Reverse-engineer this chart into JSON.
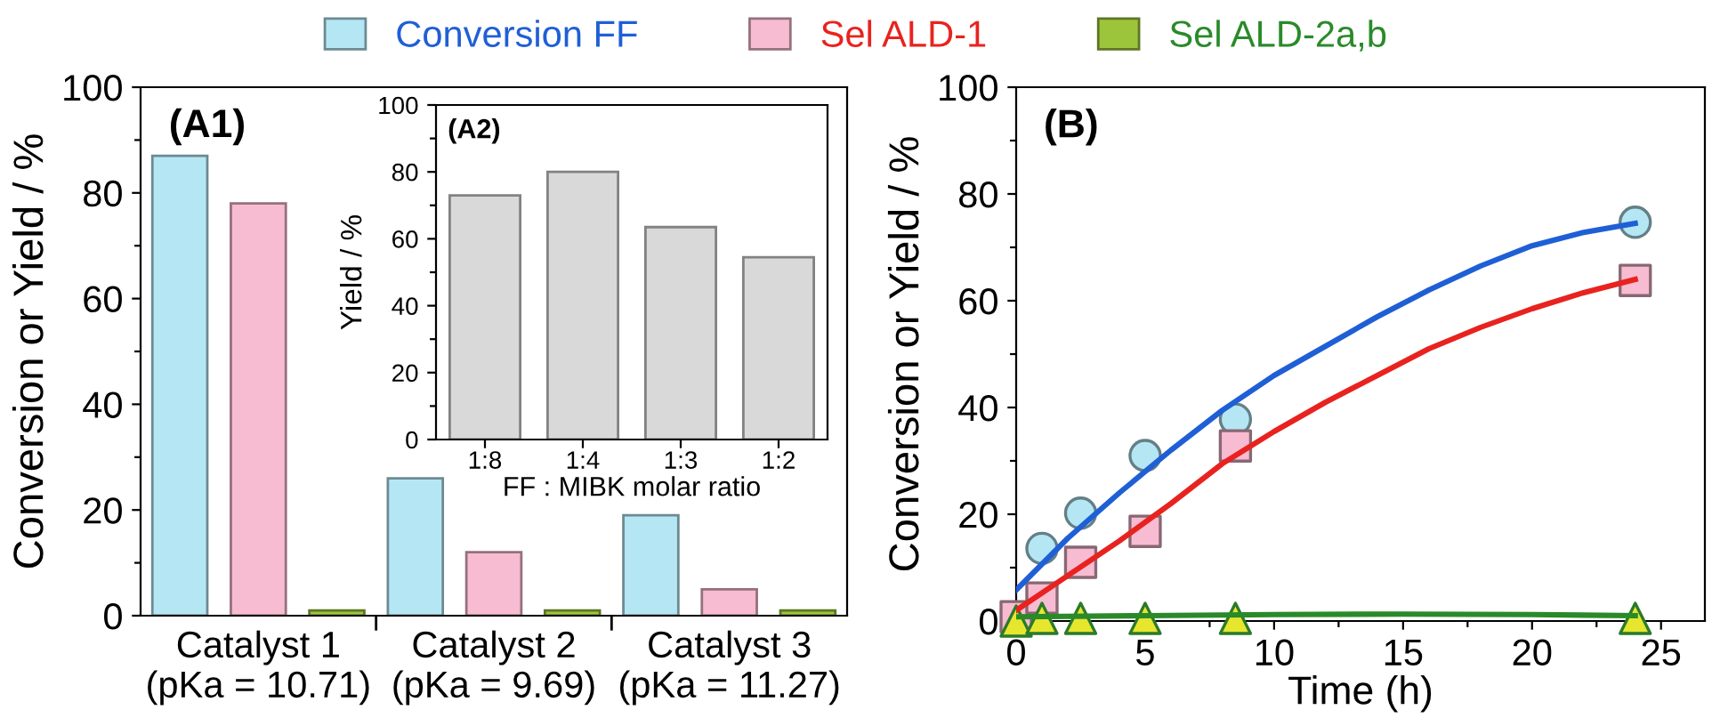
{
  "chart_data": [
    {
      "type": "bar",
      "title": "(A1)",
      "ylabel": "Conversion or Yield / %",
      "categories": [
        "Catalyst 1\n(pKa = 10.71)",
        "Catalyst 2\n(pKa = 9.69)",
        "Catalyst 3\n(pKa = 11.27)"
      ],
      "series": [
        {
          "name": "Conversion FF",
          "color": "#b5e6f3",
          "values": [
            87,
            26,
            19
          ]
        },
        {
          "name": "Sel ALD-1",
          "color": "#f7bcd1",
          "values": [
            78,
            12,
            5
          ]
        },
        {
          "name": "Sel ALD-2a,b",
          "color": "#9cc53c",
          "values": [
            1,
            1,
            1
          ]
        }
      ],
      "ylim": [
        0,
        100
      ],
      "yticks": [
        0,
        {
          "value": 10,
          "label": null
        },
        20,
        {
          "value": 30,
          "label": null
        },
        40,
        {
          "value": 50,
          "label": null
        },
        60,
        {
          "value": 70,
          "label": null
        },
        80,
        {
          "value": 90,
          "label": null
        },
        100
      ],
      "legend": "top",
      "grid": false
    },
    {
      "type": "bar",
      "title": "(A2)",
      "ylabel": "Yield / %",
      "xlabel": "FF : MIBK molar ratio",
      "categories": [
        "1:8",
        "1:4",
        "1:3",
        "1:2"
      ],
      "values": [
        73,
        80,
        63.5,
        54.5
      ],
      "color": "#d9d9d9",
      "ylim": [
        0,
        100
      ],
      "yticks": [
        0,
        {
          "value": 10,
          "label": null
        },
        20,
        {
          "value": 30,
          "label": null
        },
        40,
        {
          "value": 50,
          "label": null
        },
        60,
        {
          "value": 70,
          "label": null
        },
        80,
        {
          "value": 90,
          "label": null
        },
        100
      ],
      "grid": false
    },
    {
      "type": "scatter",
      "title": "(B)",
      "xlabel": "Time (h)",
      "ylabel": "Conversion or Yield / %",
      "xlim": [
        0,
        26.7
      ],
      "xticks": [
        0,
        {
          "value": 2.5,
          "label": null
        },
        5,
        {
          "value": 7.5,
          "label": null
        },
        10,
        {
          "value": 12.5,
          "label": null
        },
        15,
        {
          "value": 17.5,
          "label": null
        },
        20,
        {
          "value": 22.5,
          "label": null
        },
        25
      ],
      "ylim": [
        0,
        100
      ],
      "yticks": [
        0,
        {
          "value": 10,
          "label": null
        },
        20,
        {
          "value": 30,
          "label": null
        },
        40,
        {
          "value": 50,
          "label": null
        },
        60,
        {
          "value": 70,
          "label": null
        },
        80,
        {
          "value": 90,
          "label": null
        },
        100
      ],
      "grid": false,
      "series": [
        {
          "type": "line",
          "color": "#1f5fd6",
          "x": [
            0,
            2,
            4,
            6,
            8,
            10,
            12,
            14,
            16,
            18,
            20,
            22,
            24
          ],
          "values": [
            5.8,
            15.5,
            24,
            32,
            39.5,
            46,
            51.5,
            57,
            62,
            66.5,
            70.3,
            72.8,
            74.5
          ]
        },
        {
          "type": "line",
          "color": "#e8231f",
          "x": [
            0,
            2,
            4,
            6,
            8,
            10,
            12,
            14,
            16,
            18,
            20,
            22,
            24
          ],
          "values": [
            2,
            8.5,
            15,
            22,
            29.5,
            35.5,
            41,
            46,
            51,
            55,
            58.5,
            61.5,
            64
          ]
        },
        {
          "type": "line",
          "color": "#2a8a2a",
          "x": [
            0,
            5,
            10,
            15,
            20,
            24
          ],
          "values": [
            0.8,
            1,
            1.2,
            1.3,
            1.2,
            1
          ]
        },
        {
          "type": "scatter",
          "marker": "circle",
          "color": "#b5e6f3",
          "x": [
            1,
            2.5,
            5,
            8.5,
            24
          ],
          "values": [
            13.6,
            20.2,
            31,
            37.8,
            74.7
          ]
        },
        {
          "type": "scatter",
          "marker": "square",
          "color": "#f7bcd1",
          "x": [
            0,
            1,
            2.5,
            5,
            8.5,
            24
          ],
          "values": [
            0.8,
            4.3,
            11,
            16.8,
            32.8,
            63.8
          ]
        },
        {
          "type": "scatter",
          "marker": "triangle",
          "color": "#e6e62e",
          "x": [
            0,
            1,
            2.5,
            5,
            8.5,
            24
          ],
          "values": [
            0,
            0.5,
            0.5,
            0.5,
            0.5,
            0.5
          ]
        }
      ]
    }
  ]
}
